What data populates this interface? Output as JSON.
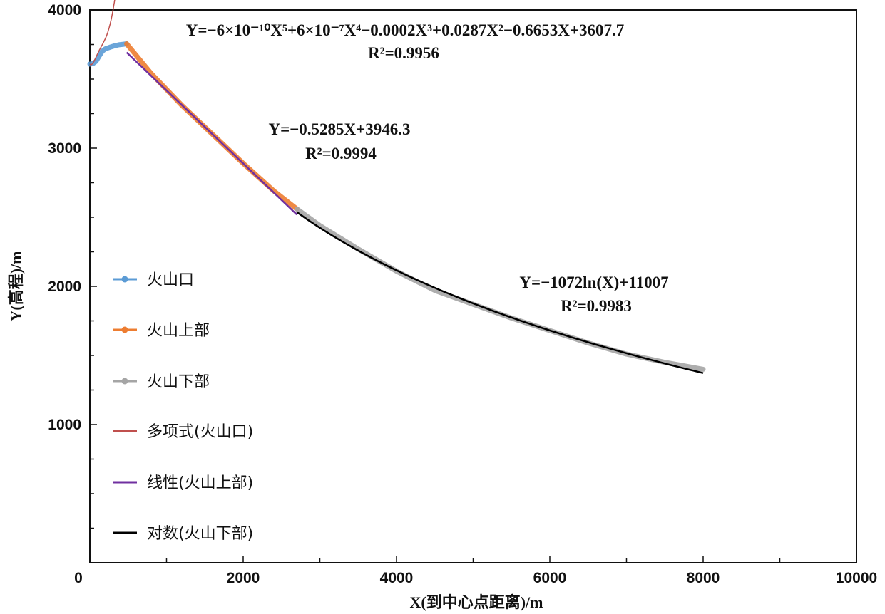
{
  "chart_data": {
    "type": "line",
    "xlabel": "X(到中心点距离)/m",
    "ylabel": "Y(高程)/m",
    "xlim": [
      0,
      10000
    ],
    "ylim": [
      0,
      4000
    ],
    "x_ticks": [
      {
        "value": 0,
        "label": "0"
      },
      {
        "value": 2000,
        "label": "2000"
      },
      {
        "value": 4000,
        "label": "4000"
      },
      {
        "value": 6000,
        "label": "6000"
      },
      {
        "value": 8000,
        "label": "8000"
      },
      {
        "value": 10000,
        "label": "10000"
      }
    ],
    "y_ticks": [
      {
        "value": 1000,
        "label": "1000"
      },
      {
        "value": 2000,
        "label": "2000"
      },
      {
        "value": 3000,
        "label": "3000"
      },
      {
        "value": 4000,
        "label": "4000"
      }
    ],
    "grid": false,
    "legend_position": "left",
    "series": [
      {
        "name": "火山口",
        "kind": "data",
        "color": "#5b9bd5",
        "x": [
          0,
          40,
          80,
          120,
          160,
          200,
          260,
          320,
          380,
          440,
          480
        ],
        "y": [
          3608,
          3612,
          3628,
          3665,
          3700,
          3718,
          3730,
          3740,
          3748,
          3752,
          3755
        ]
      },
      {
        "name": "火山上部",
        "kind": "data",
        "color": "#ed7d31",
        "x": [
          480,
          800,
          1200,
          1600,
          2000,
          2400,
          2700
        ],
        "y": [
          3755,
          3540,
          3310,
          3100,
          2890,
          2690,
          2560
        ]
      },
      {
        "name": "火山下部",
        "kind": "data",
        "color": "#a5a5a5",
        "x": [
          2700,
          3000,
          3500,
          4000,
          4500,
          5000,
          5500,
          6000,
          6500,
          7000,
          7500,
          8000
        ],
        "y": [
          2560,
          2440,
          2270,
          2110,
          1970,
          1870,
          1770,
          1680,
          1590,
          1510,
          1450,
          1400
        ]
      },
      {
        "name": "多项式(火山口)",
        "kind": "fit",
        "color": "#c0504d",
        "fit": "poly5",
        "coefficients": [
          -6e-10,
          6e-07,
          -0.0002,
          0.0287,
          -0.6653,
          3607.7
        ],
        "x_range": [
          0,
          480
        ]
      },
      {
        "name": "线性(火山上部)",
        "kind": "fit",
        "color": "#7030a0",
        "fit": "linear",
        "coefficients": [
          -0.5285,
          3946.3
        ],
        "x_range": [
          480,
          2700
        ]
      },
      {
        "name": "对数(火山下部)",
        "kind": "fit",
        "color": "#000000",
        "fit": "log",
        "coefficients": [
          -1072,
          11007
        ],
        "x_range": [
          2700,
          8000
        ]
      }
    ],
    "annotations": [
      {
        "id": "poly",
        "equation": "Y=−6×10⁻¹⁰X⁵+6×10⁻⁷X⁴−0.0002X³+0.0287X²−0.6653X+3607.7",
        "r2": "R²=0.9956"
      },
      {
        "id": "linear",
        "equation": "Y=−0.5285X+3946.3",
        "r2": "R²=0.9994"
      },
      {
        "id": "log",
        "equation": "Y=−1072ln(X)+11007",
        "r2": "R²=0.9983"
      }
    ]
  }
}
